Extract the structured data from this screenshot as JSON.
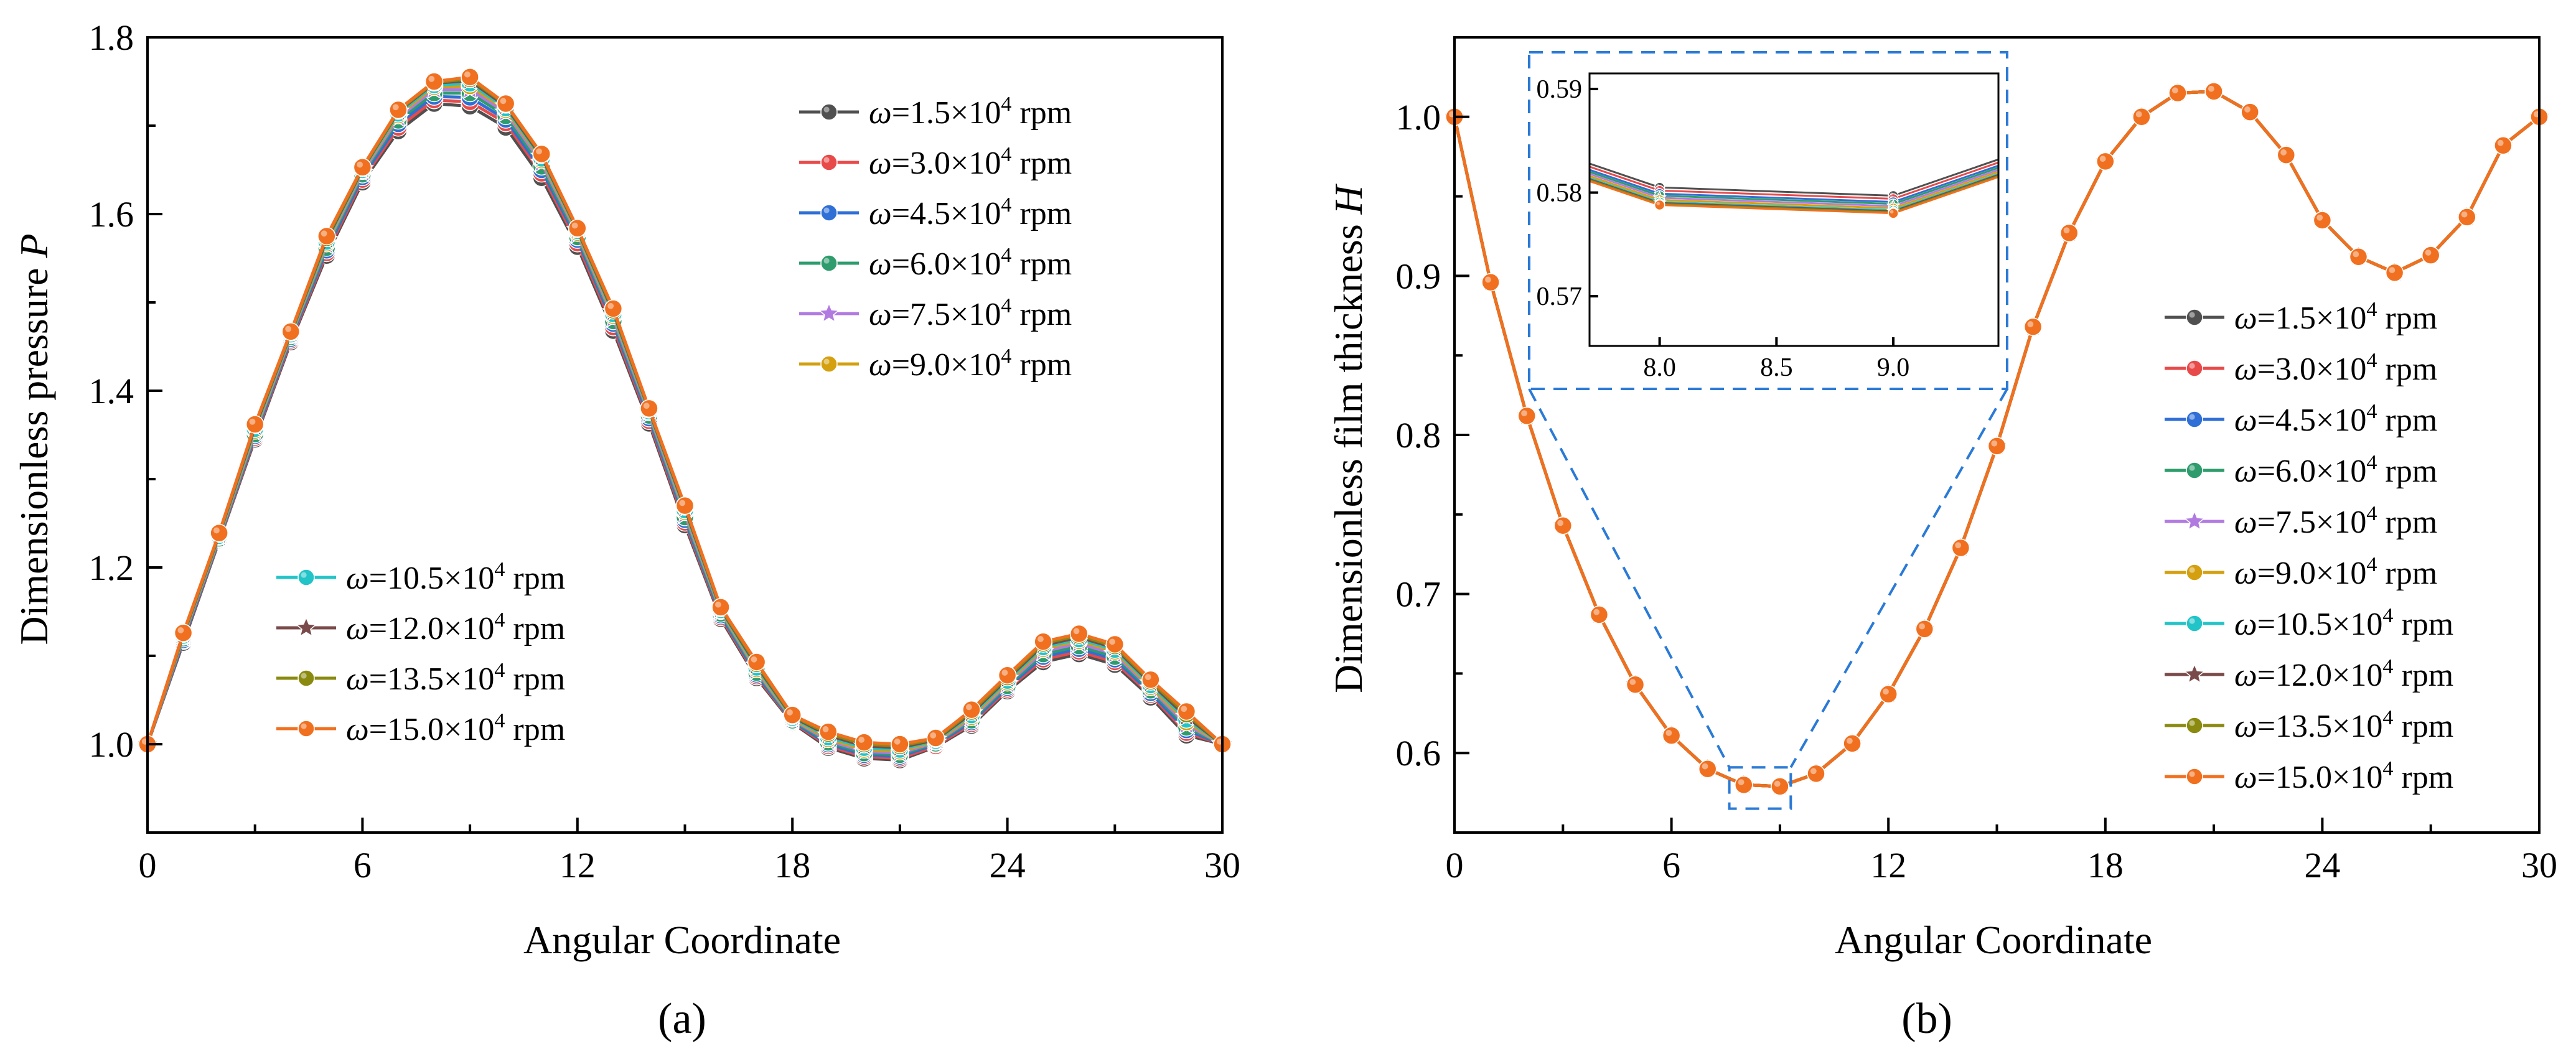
{
  "figure": {
    "panel_a_label": "(a)",
    "panel_b_label": "(b)"
  },
  "series_styles": [
    {
      "name": "ω=1.5×10⁴ rpm",
      "omega": "1.5",
      "color": "#505050",
      "marker": "circle"
    },
    {
      "name": "ω=3.0×10⁴ rpm",
      "omega": "3.0",
      "color": "#e84a4a",
      "marker": "circle"
    },
    {
      "name": "ω=4.5×10⁴ rpm",
      "omega": "4.5",
      "color": "#2f6fd6",
      "marker": "circle"
    },
    {
      "name": "ω=6.0×10⁴ rpm",
      "omega": "6.0",
      "color": "#2e9c6c",
      "marker": "circle"
    },
    {
      "name": "ω=7.5×10⁴ rpm",
      "omega": "7.5",
      "color": "#b07ae0",
      "marker": "star"
    },
    {
      "name": "ω=9.0×10⁴ rpm",
      "omega": "9.0",
      "color": "#d4a010",
      "marker": "circle"
    },
    {
      "name": "ω=10.5×10⁴ rpm",
      "omega": "10.5",
      "color": "#22c4c8",
      "marker": "circle"
    },
    {
      "name": "ω=12.0×10⁴ rpm",
      "omega": "12.0",
      "color": "#7a4a4a",
      "marker": "star"
    },
    {
      "name": "ω=13.5×10⁴ rpm",
      "omega": "13.5",
      "color": "#8a8a10",
      "marker": "circle"
    },
    {
      "name": "ω=15.0×10⁴ rpm",
      "omega": "15.0",
      "color": "#f07020",
      "marker": "circle"
    }
  ],
  "legend_text": {
    "prefix": "ω",
    "mid": "×10",
    "exp": "4",
    "unit": " rpm"
  },
  "chart_data": [
    {
      "id": "a",
      "type": "line",
      "title": "",
      "xlabel": "Angular Coordinate",
      "ylabel": "Dimensionless pressure",
      "ylabel_symbol": "P",
      "xlim": [
        0,
        30
      ],
      "ylim": [
        0.9,
        1.8
      ],
      "xticks": [
        0,
        6,
        12,
        18,
        24,
        30
      ],
      "xtick_labels": [
        "0",
        "6",
        "12",
        "18",
        "24",
        "30"
      ],
      "yticks": [
        1.0,
        1.2,
        1.4,
        1.6,
        1.8
      ],
      "ytick_labels": [
        "1.0",
        "1.2",
        "1.4",
        "1.6",
        "1.8"
      ],
      "x": [
        0,
        1,
        2,
        3,
        4,
        5,
        6,
        7,
        8,
        9,
        10,
        11,
        12,
        13,
        14,
        15,
        16,
        17,
        18,
        19,
        20,
        21,
        22,
        23,
        24,
        25,
        26,
        27,
        28,
        29,
        30
      ],
      "series": [
        {
          "name": "ω=1.5×10⁴ rpm",
          "values": [
            1.0,
            1.115,
            1.23,
            1.345,
            1.455,
            1.553,
            1.636,
            1.694,
            1.725,
            1.722,
            1.698,
            1.641,
            1.563,
            1.468,
            1.363,
            1.248,
            1.142,
            1.075,
            1.024,
            0.996,
            0.984,
            0.982,
            0.997,
            1.021,
            1.06,
            1.093,
            1.102,
            1.09,
            1.053,
            1.01,
            1.0
          ]
        },
        {
          "name": "ω=3.0×10⁴ rpm",
          "values": [
            1.0,
            1.117,
            1.231,
            1.347,
            1.457,
            1.556,
            1.639,
            1.698,
            1.729,
            1.727,
            1.703,
            1.646,
            1.567,
            1.472,
            1.366,
            1.251,
            1.144,
            1.077,
            1.025,
            0.998,
            0.986,
            0.984,
            0.998,
            1.023,
            1.062,
            1.096,
            1.105,
            1.093,
            1.056,
            1.013,
            1.0
          ]
        },
        {
          "name": "ω=4.5×10⁴ rpm",
          "values": [
            1.0,
            1.118,
            1.232,
            1.349,
            1.459,
            1.559,
            1.642,
            1.702,
            1.733,
            1.732,
            1.707,
            1.65,
            1.571,
            1.476,
            1.369,
            1.254,
            1.146,
            1.079,
            1.026,
            1.0,
            0.988,
            0.986,
            1.0,
            1.025,
            1.064,
            1.099,
            1.108,
            1.096,
            1.058,
            1.016,
            1.0
          ]
        },
        {
          "name": "ω=6.0×10⁴ rpm",
          "values": [
            1.0,
            1.12,
            1.233,
            1.351,
            1.461,
            1.562,
            1.645,
            1.706,
            1.737,
            1.737,
            1.711,
            1.654,
            1.574,
            1.479,
            1.372,
            1.257,
            1.148,
            1.081,
            1.027,
            1.002,
            0.99,
            0.988,
            1.001,
            1.027,
            1.066,
            1.102,
            1.111,
            1.099,
            1.061,
            1.019,
            1.0
          ]
        },
        {
          "name": "ω=7.5×10⁴ rpm",
          "values": [
            1.0,
            1.121,
            1.234,
            1.353,
            1.462,
            1.565,
            1.647,
            1.709,
            1.741,
            1.741,
            1.715,
            1.658,
            1.577,
            1.482,
            1.374,
            1.26,
            1.15,
            1.083,
            1.028,
            1.004,
            0.992,
            0.99,
            1.002,
            1.029,
            1.068,
            1.105,
            1.114,
            1.102,
            1.063,
            1.022,
            1.0
          ]
        },
        {
          "name": "ω=9.0×10⁴ rpm",
          "values": [
            1.0,
            1.122,
            1.235,
            1.355,
            1.463,
            1.567,
            1.649,
            1.712,
            1.744,
            1.745,
            1.718,
            1.661,
            1.579,
            1.485,
            1.376,
            1.263,
            1.151,
            1.085,
            1.029,
            1.006,
            0.994,
            0.992,
            1.003,
            1.031,
            1.07,
            1.108,
            1.117,
            1.105,
            1.065,
            1.025,
            1.0
          ]
        },
        {
          "name": "ω=10.5×10⁴ rpm",
          "values": [
            1.0,
            1.123,
            1.236,
            1.357,
            1.464,
            1.569,
            1.65,
            1.714,
            1.746,
            1.748,
            1.72,
            1.663,
            1.581,
            1.487,
            1.377,
            1.265,
            1.152,
            1.087,
            1.03,
            1.008,
            0.996,
            0.994,
            1.004,
            1.033,
            1.072,
            1.11,
            1.119,
            1.107,
            1.067,
            1.028,
            1.0
          ]
        },
        {
          "name": "ω=12.0×10⁴ rpm",
          "values": [
            1.0,
            1.124,
            1.237,
            1.359,
            1.465,
            1.571,
            1.651,
            1.716,
            1.748,
            1.751,
            1.722,
            1.665,
            1.582,
            1.489,
            1.378,
            1.267,
            1.153,
            1.089,
            1.031,
            1.01,
            0.998,
            0.996,
            1.005,
            1.035,
            1.074,
            1.112,
            1.121,
            1.109,
            1.069,
            1.031,
            1.0
          ]
        },
        {
          "name": "ω=13.5×10⁴ rpm",
          "values": [
            1.0,
            1.125,
            1.238,
            1.361,
            1.466,
            1.573,
            1.652,
            1.717,
            1.749,
            1.753,
            1.724,
            1.667,
            1.583,
            1.491,
            1.379,
            1.269,
            1.154,
            1.091,
            1.032,
            1.012,
            1.0,
            0.998,
            1.006,
            1.037,
            1.076,
            1.114,
            1.123,
            1.111,
            1.071,
            1.034,
            1.0
          ]
        },
        {
          "name": "ω=15.0×10⁴ rpm",
          "values": [
            1.0,
            1.126,
            1.239,
            1.362,
            1.467,
            1.575,
            1.653,
            1.718,
            1.75,
            1.755,
            1.725,
            1.668,
            1.584,
            1.493,
            1.38,
            1.27,
            1.155,
            1.093,
            1.033,
            1.014,
            1.002,
            1.0,
            1.007,
            1.039,
            1.078,
            1.116,
            1.125,
            1.113,
            1.073,
            1.037,
            1.0
          ]
        }
      ]
    },
    {
      "id": "b",
      "type": "line",
      "title": "",
      "xlabel": "Angular Coordinate",
      "ylabel": "Dimensionless film thickness",
      "ylabel_symbol": "H",
      "xlim": [
        0,
        30
      ],
      "ylim": [
        0.55,
        1.05
      ],
      "xticks": [
        0,
        6,
        12,
        18,
        24,
        30
      ],
      "xtick_labels": [
        "0",
        "6",
        "12",
        "18",
        "24",
        "30"
      ],
      "yticks": [
        0.6,
        0.7,
        0.8,
        0.9,
        1.0
      ],
      "ytick_labels": [
        "0.6",
        "0.7",
        "0.8",
        "0.9",
        "1.0"
      ],
      "x": [
        0,
        1,
        2,
        3,
        4,
        5,
        6,
        7,
        8,
        9,
        10,
        11,
        12,
        13,
        14,
        15,
        16,
        17,
        18,
        19,
        20,
        21,
        22,
        23,
        24,
        25,
        26,
        27,
        28,
        29,
        30
      ],
      "values_all_series": [
        1.0,
        0.896,
        0.812,
        0.743,
        0.687,
        0.643,
        0.611,
        0.59,
        0.58,
        0.579,
        0.587,
        0.606,
        0.637,
        0.678,
        0.729,
        0.793,
        0.868,
        0.927,
        0.972,
        1.0,
        1.015,
        1.016,
        1.003,
        0.976,
        0.935,
        0.912,
        0.902,
        0.913,
        0.937,
        0.982,
        1.0
      ],
      "inset": {
        "xlim": [
          7.7,
          9.45
        ],
        "ylim": [
          0.5652,
          0.5915
        ],
        "xticks": [
          8.0,
          8.5,
          9.0
        ],
        "xtick_labels": [
          "8.0",
          "8.5",
          "9.0"
        ],
        "yticks": [
          0.57,
          0.58,
          0.59
        ],
        "ytick_labels": [
          "0.57",
          "0.58",
          "0.59"
        ],
        "x": [
          7.7,
          8.0,
          9.0,
          9.45
        ],
        "series": [
          {
            "name": "ω=1.5×10⁴ rpm",
            "values": [
              0.5828,
              0.5805,
              0.5797,
              0.5832
            ]
          },
          {
            "name": "ω=3.0×10⁴ rpm",
            "values": [
              0.5825,
              0.5802,
              0.5794,
              0.5829
            ]
          },
          {
            "name": "ω=4.5×10⁴ rpm",
            "values": [
              0.5822,
              0.5799,
              0.5791,
              0.5826
            ]
          },
          {
            "name": "ω=6.0×10⁴ rpm",
            "values": [
              0.582,
              0.5797,
              0.5789,
              0.5824
            ]
          },
          {
            "name": "ω=7.5×10⁴ rpm",
            "values": [
              0.5818,
              0.5795,
              0.5787,
              0.5822
            ]
          },
          {
            "name": "ω=9.0×10⁴ rpm",
            "values": [
              0.5816,
              0.5793,
              0.5785,
              0.582
            ]
          },
          {
            "name": "ω=10.5×10⁴ rpm",
            "values": [
              0.5814,
              0.5791,
              0.5783,
              0.5818
            ]
          },
          {
            "name": "ω=12.0×10⁴ rpm",
            "values": [
              0.5813,
              0.579,
              0.5782,
              0.5817
            ]
          },
          {
            "name": "ω=13.5×10⁴ rpm",
            "values": [
              0.5812,
              0.5789,
              0.5781,
              0.5816
            ]
          },
          {
            "name": "ω=15.0×10⁴ rpm",
            "values": [
              0.5811,
              0.5788,
              0.578,
              0.5815
            ]
          }
        ]
      }
    }
  ]
}
